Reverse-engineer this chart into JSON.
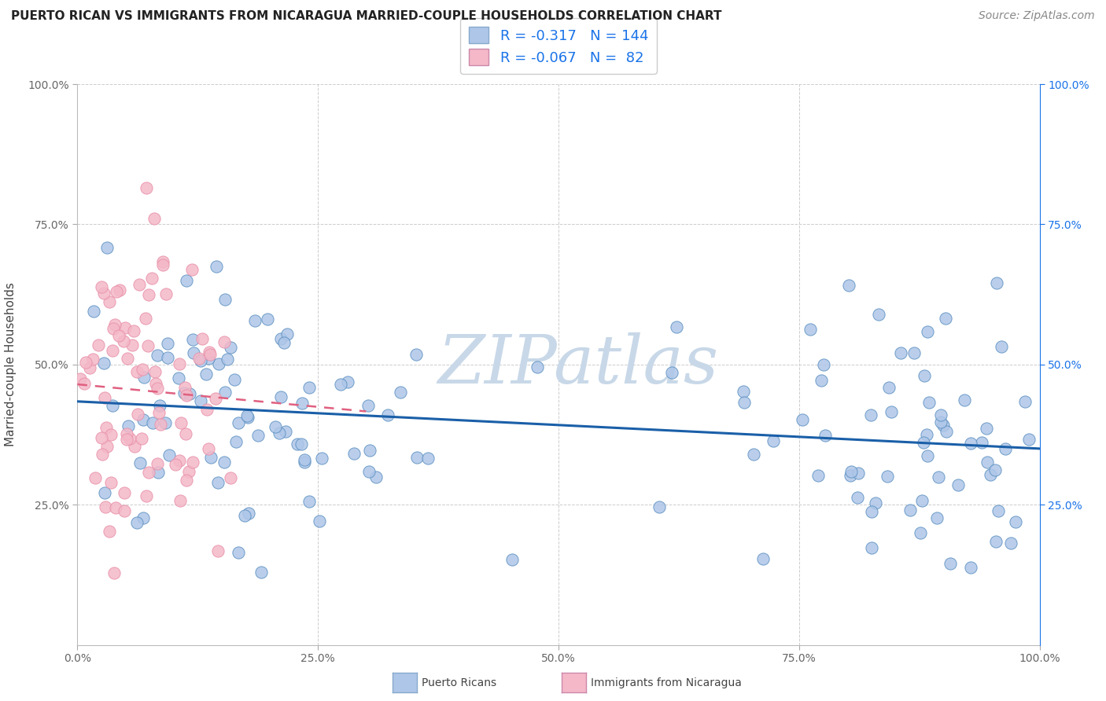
{
  "title": "PUERTO RICAN VS IMMIGRANTS FROM NICARAGUA MARRIED-COUPLE HOUSEHOLDS CORRELATION CHART",
  "source": "Source: ZipAtlas.com",
  "ylabel": "Married-couple Households",
  "xlim": [
    0.0,
    1.0
  ],
  "ylim": [
    0.0,
    1.0
  ],
  "xtick_vals": [
    0.0,
    0.25,
    0.5,
    0.75,
    1.0
  ],
  "xtick_labels": [
    "0.0%",
    "25.0%",
    "50.0%",
    "75.0%",
    "100.0%"
  ],
  "ytick_vals": [
    0.25,
    0.5,
    0.75,
    1.0
  ],
  "ytick_labels": [
    "25.0%",
    "50.0%",
    "75.0%",
    "100.0%"
  ],
  "blue_R": -0.317,
  "blue_N": 144,
  "pink_R": -0.067,
  "pink_N": 82,
  "blue_color": "#aec6e8",
  "pink_color": "#f4b8c8",
  "blue_edge_color": "#5a8fc0",
  "pink_edge_color": "#e890a8",
  "blue_line_color": "#1a5fa8",
  "pink_line_color": "#e06080",
  "legend_label_blue": "Puerto Ricans",
  "legend_label_pink": "Immigrants from Nicaragua",
  "watermark_text": "ZIPatlas",
  "watermark_color": "#c8d8e8",
  "title_fontsize": 11,
  "source_fontsize": 10,
  "tick_fontsize": 10,
  "legend_fontsize": 13,
  "marker_size": 120,
  "blue_seed": 42,
  "pink_seed": 99
}
